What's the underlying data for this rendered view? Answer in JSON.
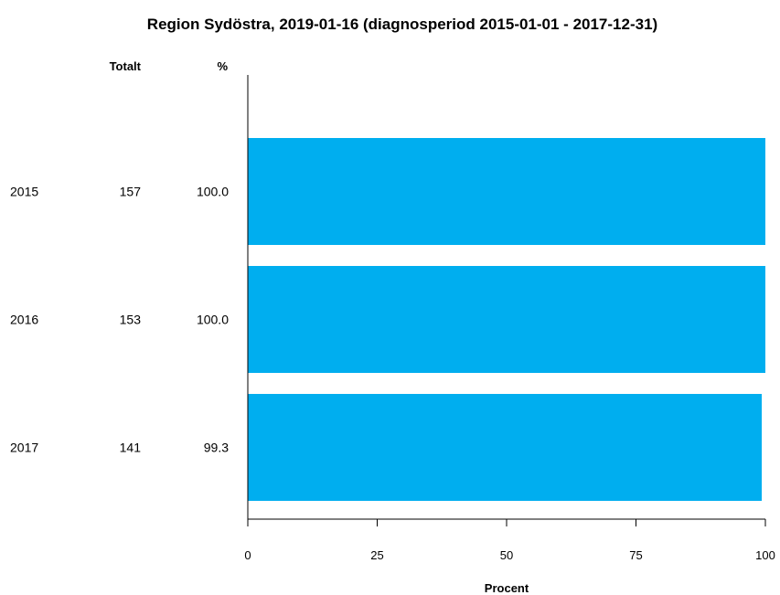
{
  "chart_data": {
    "type": "bar",
    "orientation": "horizontal",
    "title": "Region Sydöstra, 2019-01-16 (diagnosperiod 2015-01-01 - 2017-12-31)",
    "table_headers": {
      "total": "Totalt",
      "percent": "%"
    },
    "categories": [
      "2015",
      "2016",
      "2017"
    ],
    "totals": [
      "157",
      "153",
      "141"
    ],
    "percent_labels": [
      "100.0",
      "100.0",
      "99.3"
    ],
    "values": [
      100.0,
      100.0,
      99.3
    ],
    "xlabel": "Procent",
    "xlim": [
      0,
      100
    ],
    "xticks": [
      "0",
      "25",
      "50",
      "75",
      "100"
    ],
    "bar_color": "#00aeef",
    "grid": false
  }
}
